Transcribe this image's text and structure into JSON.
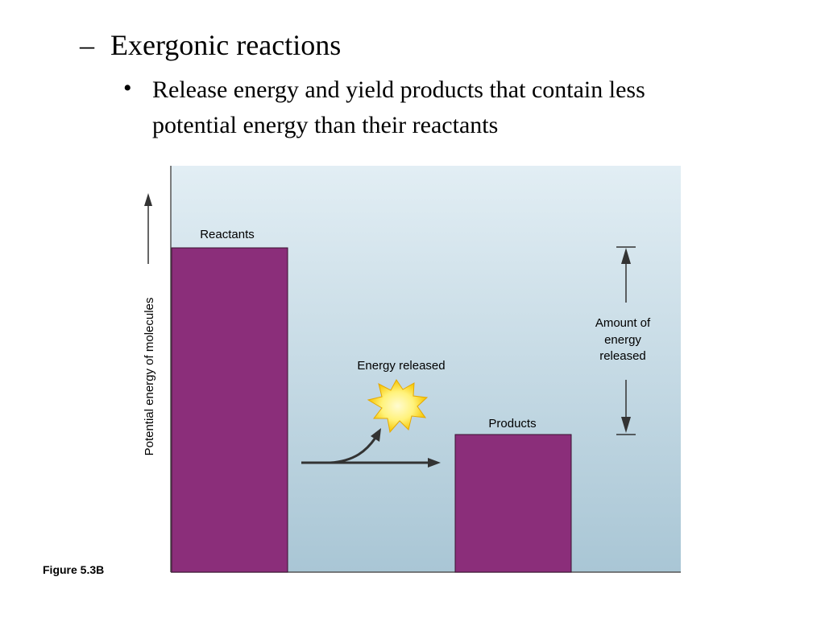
{
  "slide": {
    "dash": "–",
    "heading": "Exergonic reactions",
    "bullet_symbol": "•",
    "bullet_text": "Release energy and yield products that contain less potential energy than their reactants"
  },
  "figure": {
    "caption": "Figure 5.3B",
    "y_axis_label": "Potential energy of molecules",
    "reactants_label": "Reactants",
    "products_label": "Products",
    "energy_released_label": "Energy released",
    "amount_label_lines": [
      "Amount of",
      "energy",
      "released"
    ],
    "colors": {
      "bar": "#8b2e7a",
      "background_top": "#e2eef4",
      "background_bottom": "#a9c6d5",
      "burst_outer": "#f6c500",
      "burst_inner": "#fff27a",
      "arrow": "#333333"
    },
    "icons": [
      "energy-burst-icon",
      "up-arrow-icon",
      "down-arrow-icon"
    ]
  }
}
